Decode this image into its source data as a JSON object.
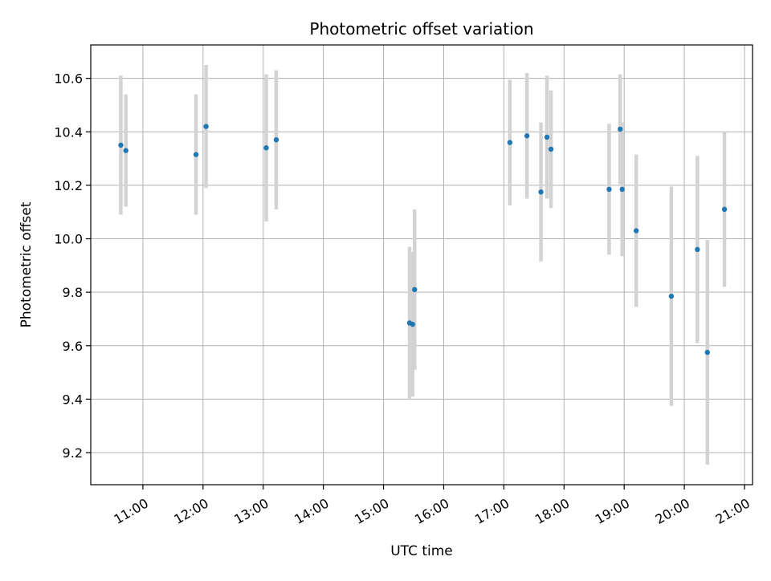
{
  "chart_data": {
    "type": "scatter",
    "title": "Photometric offset variation",
    "xlabel": "UTC time",
    "ylabel": "Photometric offset",
    "x_axis_kind": "time",
    "xlim": [
      "10:08",
      "21:08"
    ],
    "ylim": [
      9.08,
      10.725
    ],
    "x_ticks": [
      "11:00",
      "12:00",
      "13:00",
      "14:00",
      "15:00",
      "16:00",
      "17:00",
      "18:00",
      "19:00",
      "20:00",
      "21:00"
    ],
    "y_ticks": [
      "9.2",
      "9.4",
      "9.6",
      "9.8",
      "10.0",
      "10.2",
      "10.4",
      "10.6"
    ],
    "y_tick_values": [
      9.2,
      9.4,
      9.6,
      9.8,
      10.0,
      10.2,
      10.4,
      10.6
    ],
    "grid": true,
    "marker_color": "#1f77b4",
    "errorbar_color": "#d3d3d3",
    "series": [
      {
        "points": [
          {
            "x": "10:38",
            "y": 10.35,
            "err": 0.26
          },
          {
            "x": "10:43",
            "y": 10.33,
            "err": 0.21
          },
          {
            "x": "11:53",
            "y": 10.315,
            "err": 0.225
          },
          {
            "x": "12:03",
            "y": 10.42,
            "err": 0.23
          },
          {
            "x": "13:03",
            "y": 10.34,
            "err": 0.275
          },
          {
            "x": "13:13",
            "y": 10.37,
            "err": 0.26
          },
          {
            "x": "15:26",
            "y": 9.685,
            "err": 0.285
          },
          {
            "x": "15:29",
            "y": 9.68,
            "err": 0.27
          },
          {
            "x": "15:31",
            "y": 9.81,
            "err": 0.3
          },
          {
            "x": "17:06",
            "y": 10.36,
            "err": 0.235
          },
          {
            "x": "17:23",
            "y": 10.385,
            "err": 0.235
          },
          {
            "x": "17:37",
            "y": 10.175,
            "err": 0.26
          },
          {
            "x": "17:43",
            "y": 10.38,
            "err": 0.23
          },
          {
            "x": "17:47",
            "y": 10.335,
            "err": 0.22
          },
          {
            "x": "18:45",
            "y": 10.185,
            "err": 0.245
          },
          {
            "x": "18:56",
            "y": 10.41,
            "err": 0.205
          },
          {
            "x": "18:58",
            "y": 10.185,
            "err": 0.25
          },
          {
            "x": "19:12",
            "y": 10.03,
            "err": 0.285
          },
          {
            "x": "19:47",
            "y": 9.785,
            "err": 0.41
          },
          {
            "x": "20:13",
            "y": 9.96,
            "err": 0.35
          },
          {
            "x": "20:23",
            "y": 9.575,
            "err": 0.42
          },
          {
            "x": "20:40",
            "y": 10.11,
            "err": 0.29
          }
        ]
      }
    ]
  }
}
